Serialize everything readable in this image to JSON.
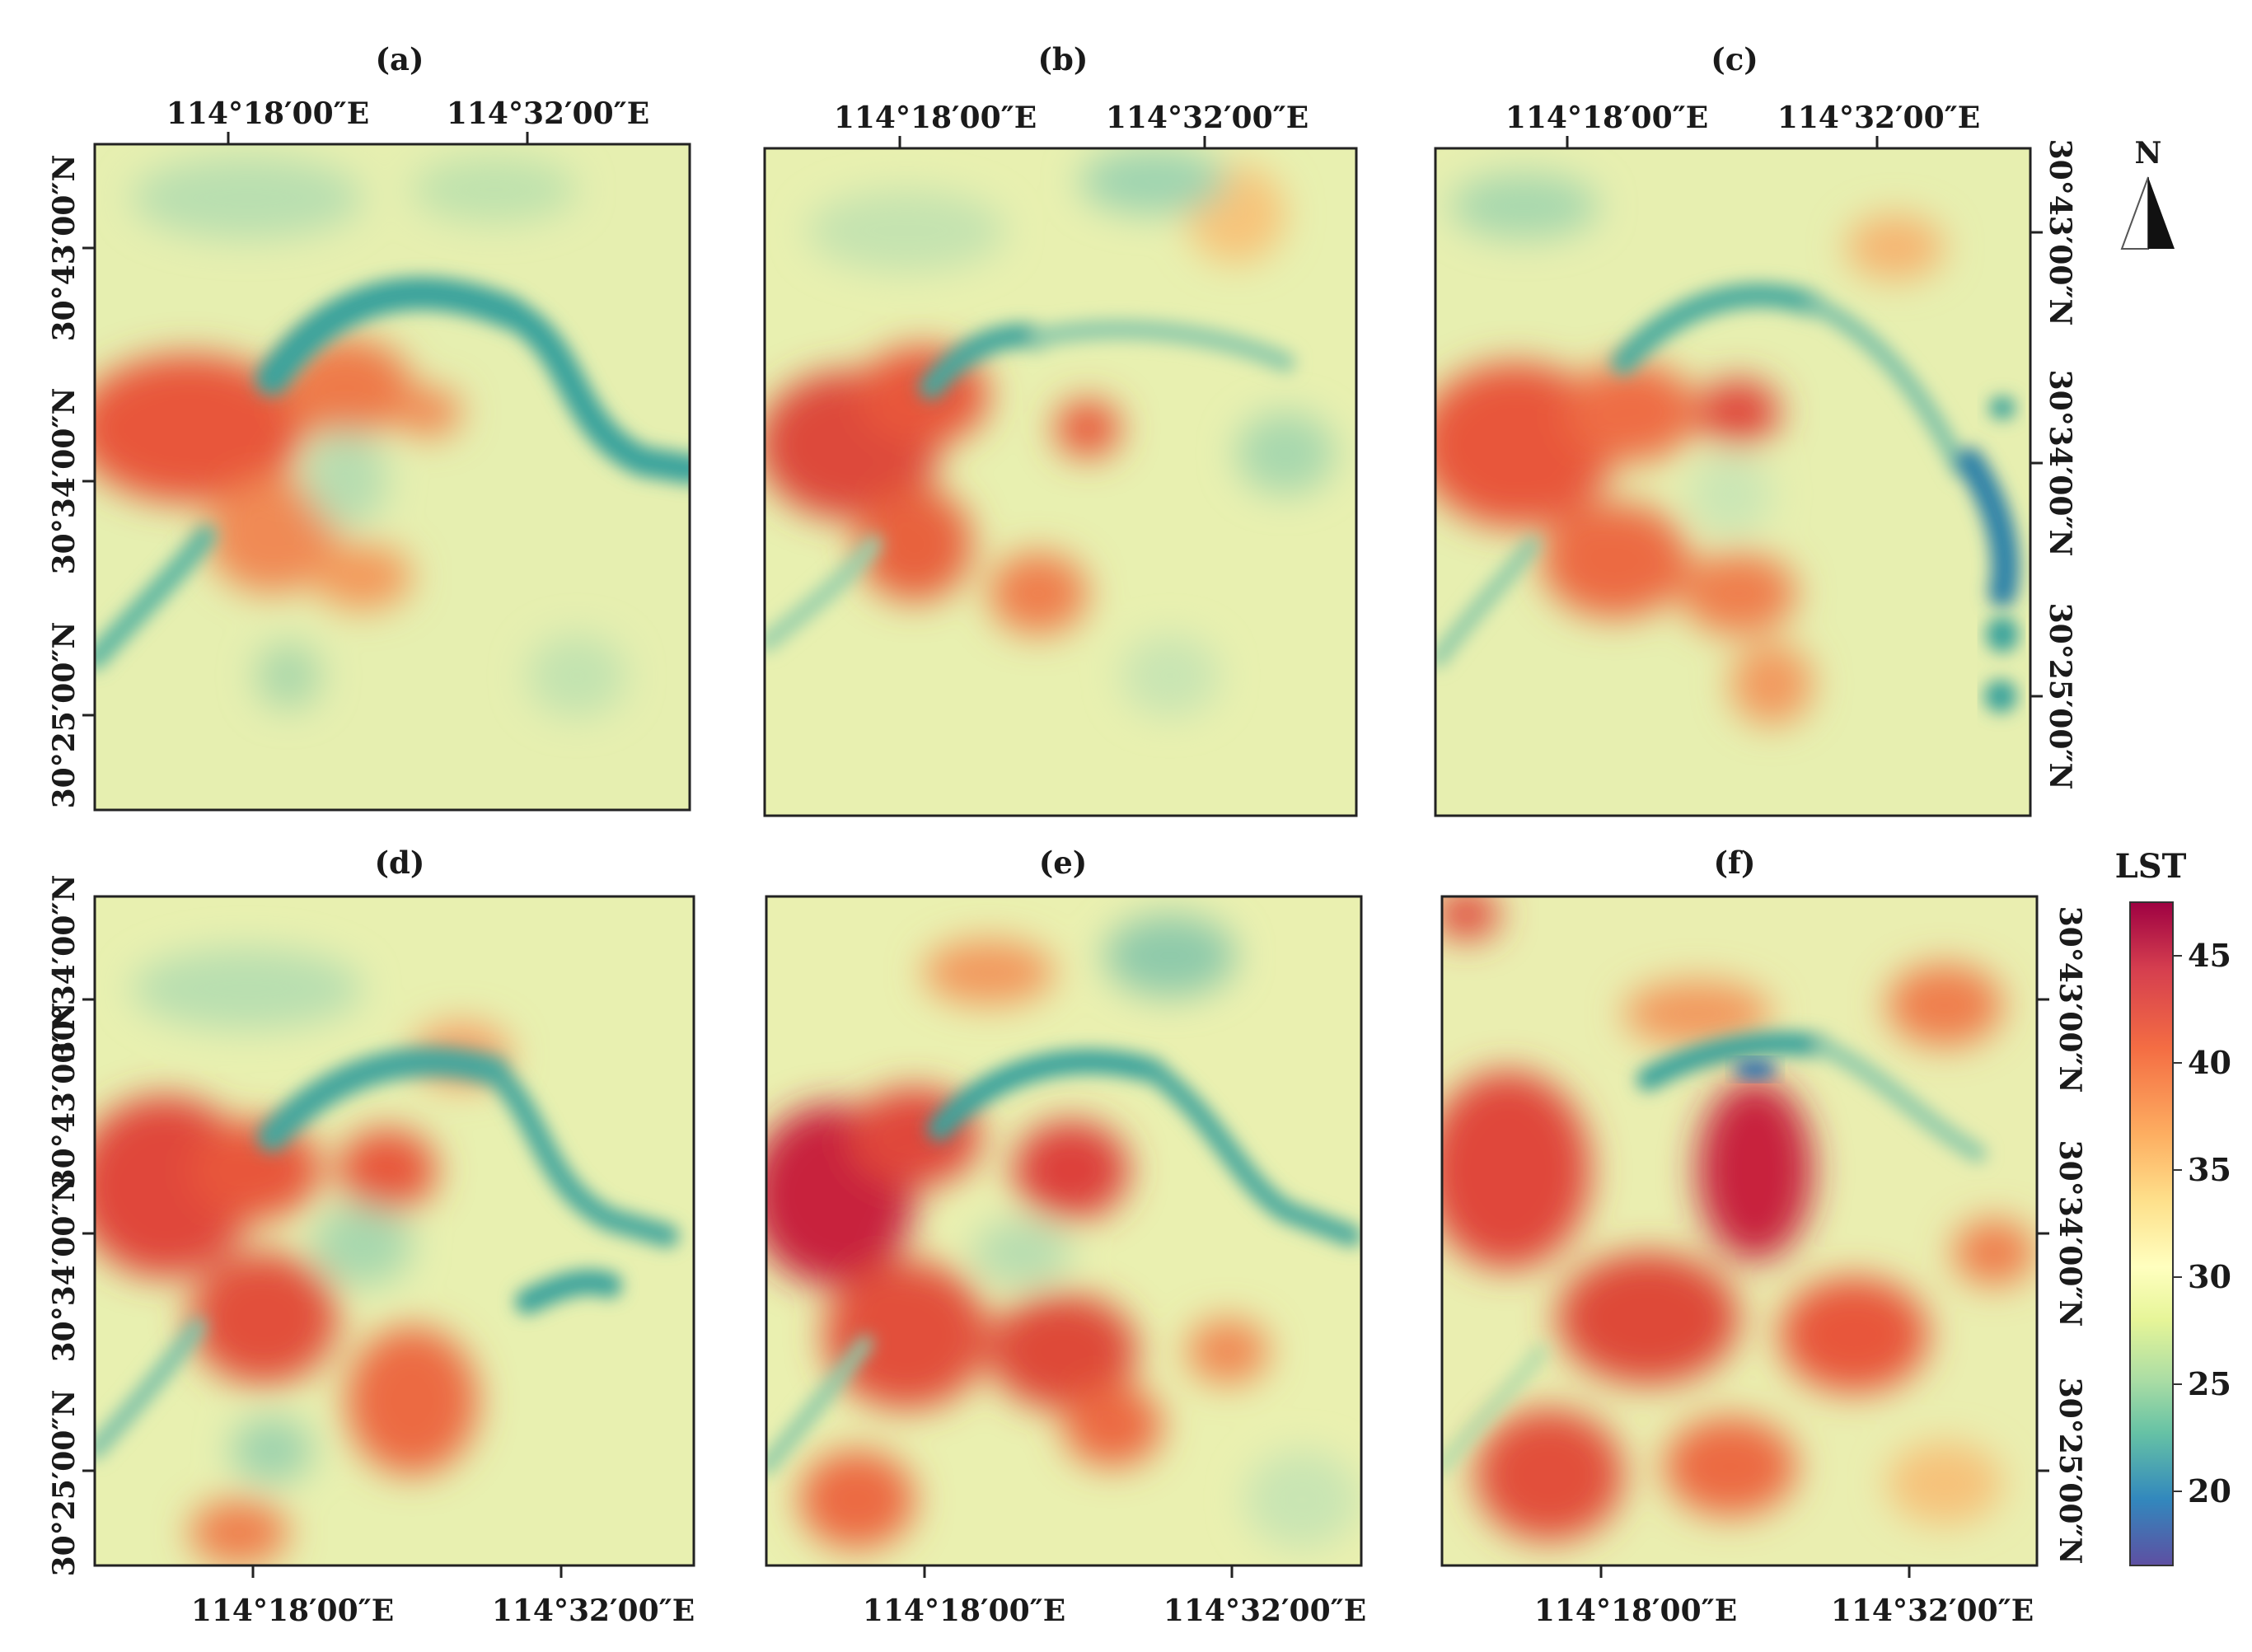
{
  "figure": {
    "panels": [
      {
        "label": "(a)",
        "x_labels": [
          "114°18′00″E",
          "114°32′00″E"
        ],
        "x_labels_position": "top",
        "y_labels": [
          "30°43′00″N",
          "30°34′00″N",
          "30°25′00″N"
        ],
        "y_labels_side": "left"
      },
      {
        "label": "(b)",
        "x_labels": [
          "114°18′00″E",
          "114°32′00″E"
        ],
        "x_labels_position": "top",
        "y_labels": [],
        "y_labels_side": "none"
      },
      {
        "label": "(c)",
        "x_labels": [
          "114°18′00″E",
          "114°32′00″E"
        ],
        "x_labels_position": "top",
        "y_labels": [
          "30°43′00″N",
          "30°34′00″N",
          "30°25′00″N"
        ],
        "y_labels_side": "right"
      },
      {
        "label": "(d)",
        "x_labels": [
          "114°18′00″E",
          "114°32′00″E"
        ],
        "x_labels_position": "bottom",
        "y_labels": [
          "30°34′00″N",
          "30°43′00″N",
          "30°34′00″N",
          "30°25′00″N"
        ],
        "y_labels_side": "left"
      },
      {
        "label": "(e)",
        "x_labels": [
          "114°18′00″E",
          "114°32′00″E"
        ],
        "x_labels_position": "bottom",
        "y_labels": [],
        "y_labels_side": "none"
      },
      {
        "label": "(f)",
        "x_labels": [
          "114°18′00″E",
          "114°32′00″E"
        ],
        "x_labels_position": "bottom",
        "y_labels": [
          "30°43′00″N",
          "30°34′00″N",
          "30°25′00″N"
        ],
        "y_labels_side": "right"
      }
    ],
    "north_arrow": {
      "label": "N"
    },
    "legend": {
      "title": "LST",
      "ticks": [
        "45",
        "40",
        "35",
        "30",
        "25",
        "20"
      ],
      "colors": [
        "#9e0142",
        "#d53e4f",
        "#f46d43",
        "#fdae61",
        "#fee08b",
        "#ffffbf",
        "#e6f598",
        "#abdda4",
        "#66c2a5",
        "#3288bd",
        "#5e4fa2"
      ]
    },
    "map_colors": {
      "background": "#e8f0b0",
      "hot": "#e8573a",
      "very_hot": "#c8223d",
      "warm": "#f6b26b",
      "cool": "#9dd3a8",
      "water": "#3ba39c",
      "deep_water": "#2c6fb0"
    }
  }
}
